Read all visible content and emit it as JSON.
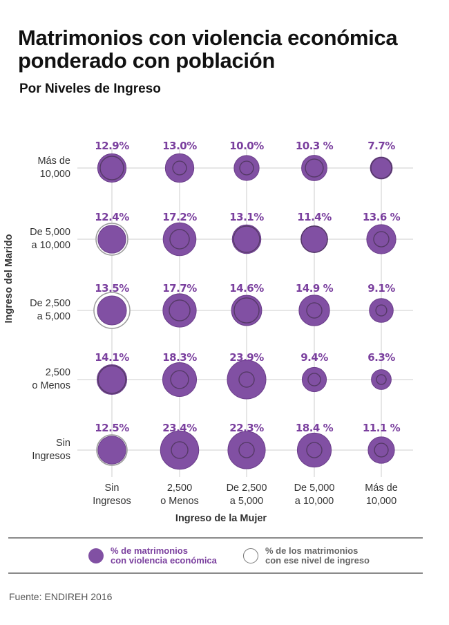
{
  "header": {
    "title_line1": "Matrimonios con violencia económica",
    "title_line2": "ponderado con población",
    "subtitle": "Por Niveles de Ingreso"
  },
  "colors": {
    "fill": "#8150a3",
    "fill_stroke": "#6a3d8a",
    "outline": "#4a3358",
    "outline_empty": "#9a9a9a",
    "label": "#7a3f9e",
    "grid": "#e6e6e6"
  },
  "chart_data": {
    "type": "scatter",
    "subtype": "bubble-grid",
    "title": "Matrimonios con violencia económica ponderado con población",
    "subtitle": "Por Niveles de Ingreso",
    "xlabel": "Ingreso de la Mujer",
    "ylabel": "Ingreso del Marido",
    "x_categories": [
      "Sin Ingresos",
      "2,500 o Menos",
      "De 2,500 a 5,000",
      "De 5,000 a 10,000",
      "Más de 10,000"
    ],
    "x_labels": [
      [
        "Sin",
        "Ingresos"
      ],
      [
        "2,500",
        "o Menos"
      ],
      [
        "De 2,500",
        "a 5,000"
      ],
      [
        "De 5,000",
        "a 10,000"
      ],
      [
        "Más de",
        "10,000"
      ]
    ],
    "y_categories": [
      "Más de 10,000",
      "De 5,000 a 10,000",
      "De 2,500 a 5,000",
      "2,500 o Menos",
      "Sin Ingresos"
    ],
    "y_labels": [
      [
        "Más de",
        "10,000"
      ],
      [
        "De 5,000",
        "a 10,000"
      ],
      [
        "De 2,500",
        "a 5,000"
      ],
      [
        "2,500",
        "o Menos"
      ],
      [
        "Sin",
        "Ingresos"
      ]
    ],
    "grid": true,
    "series": [
      {
        "name": "% de matrimonios con violencia económica",
        "style": "filled",
        "values": [
          [
            12.9,
            13.0,
            10.0,
            10.3,
            7.7
          ],
          [
            12.4,
            17.2,
            13.1,
            11.4,
            13.6
          ],
          [
            13.5,
            17.7,
            14.6,
            14.9,
            9.1
          ],
          [
            14.1,
            18.3,
            23.9,
            9.4,
            6.3
          ],
          [
            12.5,
            23.4,
            22.3,
            18.4,
            11.1
          ]
        ],
        "labels": [
          [
            "12.9%",
            "13.0%",
            "10.0%",
            "10.3 %",
            "7.7%"
          ],
          [
            "12.4%",
            "17.2%",
            "13.1%",
            "11.4%",
            "13.6 %"
          ],
          [
            "13.5%",
            "17.7%",
            "14.6%",
            "14.9 %",
            "9.1%"
          ],
          [
            "14.1%",
            "18.3%",
            "23.9%",
            "9.4%",
            "6.3%"
          ],
          [
            "12.5%",
            "23.4%",
            "22.3%",
            "18.4 %",
            "11.1 %"
          ]
        ]
      },
      {
        "name": "% de los matrimonios con ese nivel de ingreso",
        "style": "outline",
        "estimated": true,
        "values": [
          [
            8.8,
            3.0,
            3.0,
            5.1,
            6.9
          ],
          [
            16.1,
            6.0,
            11.0,
            11.0,
            3.7
          ],
          [
            20.6,
            6.9,
            9.9,
            3.7,
            1.9
          ],
          [
            12.2,
            5.1,
            3.7,
            2.5,
            1.5
          ],
          [
            14.7,
            4.4,
            3.7,
            3.7,
            3.0
          ]
        ]
      }
    ]
  },
  "legend": {
    "item1_line1": "% de matrimonios",
    "item1_line2": "con violencia económica",
    "item2_line1": "% de los matrimonios",
    "item2_line2": "con ese nivel de ingreso"
  },
  "footer": {
    "source": "Fuente: ENDIREH 2016"
  }
}
